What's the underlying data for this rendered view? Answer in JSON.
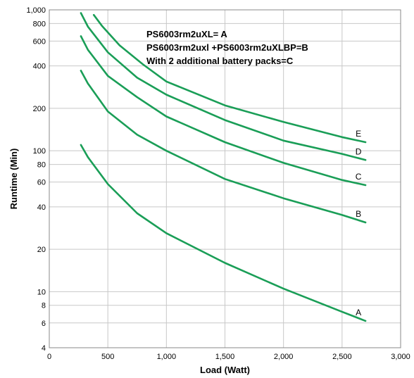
{
  "chart_data": {
    "type": "line",
    "title": "",
    "xlabel": "Load (Watt)",
    "ylabel": "Runtime (Min)",
    "xlim": [
      0,
      3000
    ],
    "ylim": [
      4,
      1000
    ],
    "y_scale": "log",
    "grid": true,
    "x_ticks": [
      0,
      500,
      1000,
      1500,
      2000,
      2500,
      3000
    ],
    "x_tick_labels": [
      "0",
      "500",
      "1,000",
      "1,500",
      "2,000",
      "2,500",
      "3,000"
    ],
    "y_ticks": [
      4,
      6,
      8,
      10,
      20,
      40,
      60,
      80,
      100,
      200,
      400,
      600,
      800,
      1000
    ],
    "y_tick_labels": [
      "4",
      "6",
      "8",
      "10",
      "20",
      "40",
      "60",
      "80",
      "100",
      "200",
      "400",
      "600",
      "800",
      "1,000"
    ],
    "annotations": [
      "PS6003rm2uXL= A",
      "PS6003rm2uxl +PS6003rm2uXLBP=B",
      "With 2 additional battery packs=C"
    ],
    "line_color": "#1a9e57",
    "series": [
      {
        "name": "A",
        "x": [
          270,
          330,
          500,
          750,
          1000,
          1500,
          2000,
          2500,
          2700
        ],
        "y": [
          110,
          90,
          58,
          36,
          26,
          16,
          10.5,
          7.2,
          6.2
        ]
      },
      {
        "name": "B",
        "x": [
          270,
          330,
          500,
          750,
          1000,
          1500,
          2000,
          2500,
          2700
        ],
        "y": [
          370,
          300,
          190,
          130,
          100,
          63,
          46,
          35,
          31
        ]
      },
      {
        "name": "C",
        "x": [
          270,
          330,
          500,
          750,
          1000,
          1500,
          2000,
          2500,
          2700
        ],
        "y": [
          650,
          520,
          340,
          240,
          175,
          115,
          82,
          62,
          57
        ]
      },
      {
        "name": "D",
        "x": [
          270,
          330,
          500,
          750,
          1000,
          1500,
          2000,
          2500,
          2700
        ],
        "y": [
          950,
          760,
          500,
          330,
          250,
          165,
          118,
          95,
          86
        ]
      },
      {
        "name": "E",
        "x": [
          380,
          450,
          600,
          800,
          1000,
          1500,
          2000,
          2500,
          2700
        ],
        "y": [
          920,
          770,
          560,
          410,
          310,
          210,
          160,
          125,
          115
        ]
      }
    ]
  }
}
